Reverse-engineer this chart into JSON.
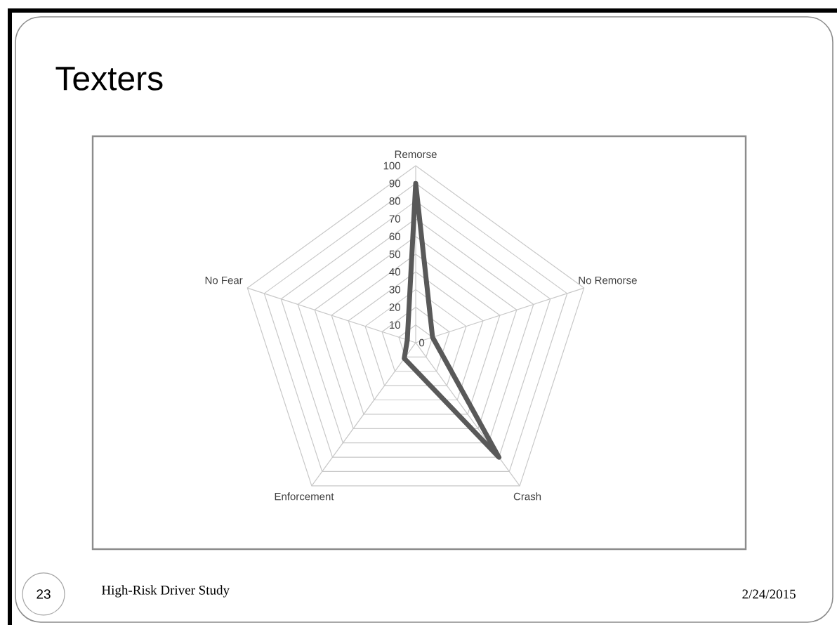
{
  "chart_data": {
    "type": "radar",
    "title": "Texters",
    "categories": [
      "Remorse",
      "No Remorse",
      "Crash",
      "Enforcement",
      "No Fear"
    ],
    "series": [
      {
        "color": "#595959",
        "values": [
          90,
          10,
          80,
          11,
          5
        ]
      }
    ],
    "ylim": [
      0,
      100
    ],
    "yticks": [
      0,
      10,
      20,
      30,
      40,
      50,
      60,
      70,
      80,
      90,
      100
    ],
    "grid": true,
    "marker": "none",
    "line_style": "solid",
    "annotations": [
      "High-Risk Driver Study",
      "2/24/2015",
      "23"
    ]
  }
}
